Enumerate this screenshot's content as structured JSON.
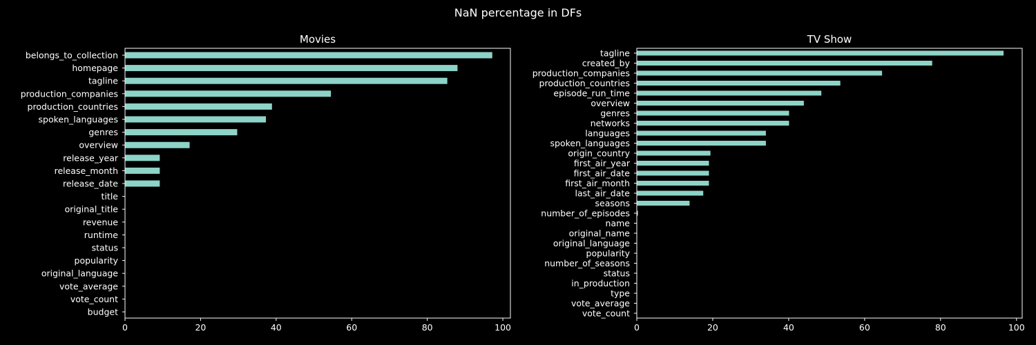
{
  "suptitle": "NaN percentage in DFs",
  "colors": {
    "background": "#000000",
    "bar": "#8dd3c7",
    "axis": "#ffffff",
    "text": "#ffffff"
  },
  "chart_data": [
    {
      "type": "bar",
      "orientation": "horizontal",
      "title": "Movies",
      "xlabel": "",
      "ylabel": "",
      "xlim": [
        0,
        102
      ],
      "xticks": [
        0,
        20,
        40,
        60,
        80,
        100
      ],
      "grid": false,
      "categories": [
        "belongs_to_collection",
        "homepage",
        "tagline",
        "production_companies",
        "production_countries",
        "spoken_languages",
        "genres",
        "overview",
        "release_year",
        "release_month",
        "release_date",
        "title",
        "original_title",
        "revenue",
        "runtime",
        "status",
        "popularity",
        "original_language",
        "vote_average",
        "vote_count",
        "budget"
      ],
      "values": [
        97.2,
        88.0,
        85.3,
        54.5,
        38.9,
        37.3,
        29.7,
        17.1,
        9.2,
        9.2,
        9.2,
        0,
        0,
        0,
        0,
        0,
        0,
        0,
        0,
        0,
        0
      ]
    },
    {
      "type": "bar",
      "orientation": "horizontal",
      "title": "TV Show",
      "xlabel": "",
      "ylabel": "",
      "xlim": [
        0,
        101.5
      ],
      "xticks": [
        0,
        20,
        40,
        60,
        80,
        100
      ],
      "grid": false,
      "categories": [
        "tagline",
        "created_by",
        "production_companies",
        "production_countries",
        "episode_run_time",
        "overview",
        "genres",
        "networks",
        "languages",
        "spoken_languages",
        "origin_country",
        "first_air_year",
        "first_air_date",
        "first_air_month",
        "last_air_date",
        "seasons",
        "number_of_episodes",
        "name",
        "original_name",
        "original_language",
        "popularity",
        "number_of_seasons",
        "status",
        "in_production",
        "type",
        "vote_average",
        "vote_count"
      ],
      "values": [
        96.6,
        77.8,
        64.6,
        53.6,
        48.6,
        44.0,
        40.1,
        40.1,
        34.0,
        34.0,
        19.4,
        19.0,
        19.0,
        19.0,
        17.5,
        13.9,
        0.3,
        0,
        0,
        0,
        0,
        0,
        0,
        0,
        0,
        0,
        0
      ]
    }
  ]
}
